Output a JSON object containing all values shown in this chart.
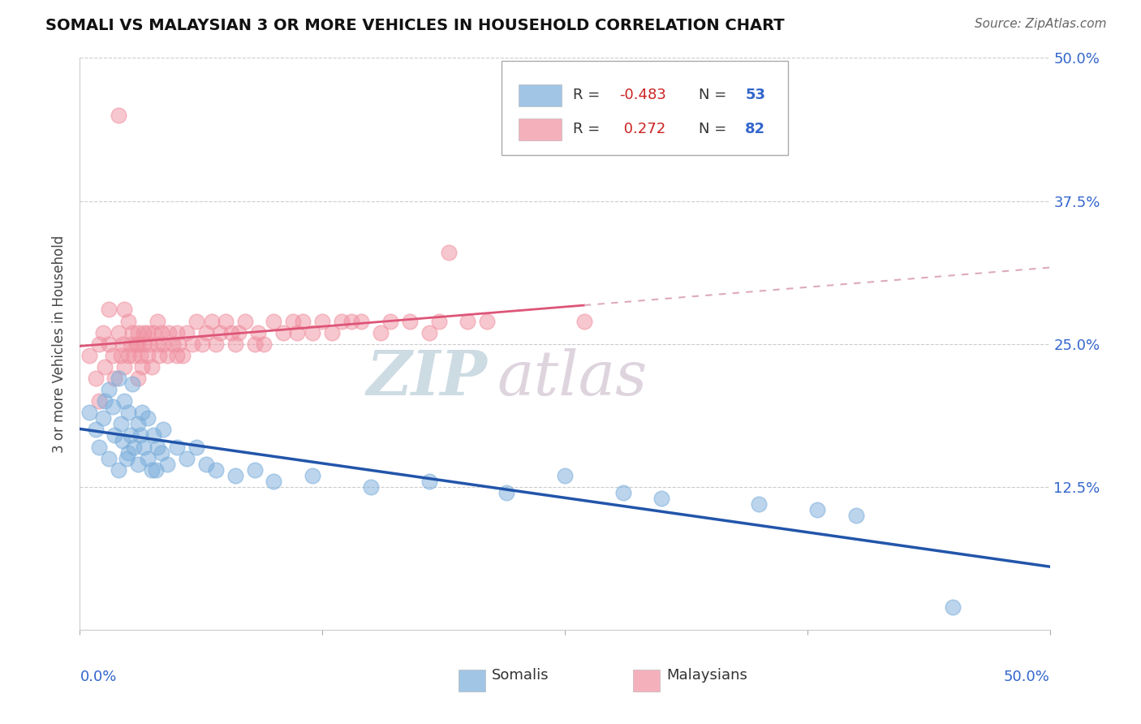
{
  "title": "SOMALI VS MALAYSIAN 3 OR MORE VEHICLES IN HOUSEHOLD CORRELATION CHART",
  "source": "Source: ZipAtlas.com",
  "ylabel": "3 or more Vehicles in Household",
  "yticks": [
    0.0,
    12.5,
    25.0,
    37.5,
    50.0
  ],
  "ytick_labels": [
    "",
    "12.5%",
    "25.0%",
    "37.5%",
    "50.0%"
  ],
  "xlim": [
    0.0,
    50.0
  ],
  "ylim": [
    0.0,
    50.0
  ],
  "somali_color": "#7aaddb",
  "malaysian_color": "#f090a0",
  "somali_R": -0.483,
  "somali_N": 53,
  "malaysian_R": 0.272,
  "malaysian_N": 82,
  "somali_line_color": "#2255aa",
  "malaysian_line_color": "#dd5577",
  "malaysian_dash_color": "#ddaabb",
  "watermark_ZIP": "ZIP",
  "watermark_atlas": "atlas",
  "watermark_color_ZIP": "#c8d8e8",
  "watermark_color_atlas": "#d0c8d0",
  "legend_R_color": "#cc2222",
  "legend_N_color": "#3366cc",
  "somali_points_x": [
    0.5,
    0.8,
    1.0,
    1.2,
    1.3,
    1.5,
    1.5,
    1.7,
    1.8,
    2.0,
    2.0,
    2.1,
    2.2,
    2.3,
    2.5,
    2.5,
    2.6,
    2.7,
    2.8,
    3.0,
    3.0,
    3.1,
    3.2,
    3.3,
    3.5,
    3.5,
    3.7,
    3.8,
    4.0,
    4.2,
    4.3,
    4.5,
    5.0,
    5.5,
    6.0,
    6.5,
    7.0,
    8.0,
    9.0,
    10.0,
    12.0,
    15.0,
    18.0,
    22.0,
    25.0,
    28.0,
    30.0,
    35.0,
    38.0,
    40.0,
    45.0,
    2.4,
    3.9
  ],
  "somali_points_y": [
    19.0,
    17.5,
    16.0,
    18.5,
    20.0,
    15.0,
    21.0,
    19.5,
    17.0,
    22.0,
    14.0,
    18.0,
    16.5,
    20.0,
    15.5,
    19.0,
    17.0,
    21.5,
    16.0,
    18.0,
    14.5,
    17.0,
    19.0,
    16.0,
    15.0,
    18.5,
    14.0,
    17.0,
    16.0,
    15.5,
    17.5,
    14.5,
    16.0,
    15.0,
    16.0,
    14.5,
    14.0,
    13.5,
    14.0,
    13.0,
    13.5,
    12.5,
    13.0,
    12.0,
    13.5,
    12.0,
    11.5,
    11.0,
    10.5,
    10.0,
    2.0,
    15.0,
    14.0
  ],
  "malaysian_points_x": [
    0.5,
    0.8,
    1.0,
    1.0,
    1.2,
    1.3,
    1.5,
    1.5,
    1.7,
    1.8,
    2.0,
    2.0,
    2.1,
    2.2,
    2.3,
    2.3,
    2.5,
    2.5,
    2.6,
    2.7,
    2.8,
    2.9,
    3.0,
    3.0,
    3.0,
    3.1,
    3.2,
    3.3,
    3.3,
    3.5,
    3.5,
    3.6,
    3.7,
    3.8,
    4.0,
    4.0,
    4.1,
    4.2,
    4.3,
    4.5,
    4.6,
    4.8,
    5.0,
    5.0,
    5.1,
    5.3,
    5.5,
    5.8,
    6.0,
    6.3,
    6.5,
    6.8,
    7.0,
    7.2,
    7.5,
    7.8,
    8.0,
    8.2,
    8.5,
    9.0,
    9.2,
    9.5,
    10.0,
    10.5,
    11.0,
    11.2,
    11.5,
    12.0,
    12.5,
    13.0,
    13.5,
    14.0,
    14.5,
    15.5,
    16.0,
    17.0,
    18.0,
    18.5,
    19.0,
    20.0,
    21.0,
    26.0
  ],
  "malaysian_points_y": [
    24.0,
    22.0,
    25.0,
    20.0,
    26.0,
    23.0,
    25.0,
    28.0,
    24.0,
    22.0,
    45.0,
    26.0,
    24.0,
    25.0,
    23.0,
    28.0,
    24.0,
    27.0,
    25.0,
    26.0,
    24.0,
    25.0,
    26.0,
    22.0,
    25.0,
    24.0,
    23.0,
    26.0,
    25.0,
    24.0,
    26.0,
    25.0,
    23.0,
    26.0,
    25.0,
    27.0,
    24.0,
    26.0,
    25.0,
    24.0,
    26.0,
    25.0,
    24.0,
    26.0,
    25.0,
    24.0,
    26.0,
    25.0,
    27.0,
    25.0,
    26.0,
    27.0,
    25.0,
    26.0,
    27.0,
    26.0,
    25.0,
    26.0,
    27.0,
    25.0,
    26.0,
    25.0,
    27.0,
    26.0,
    27.0,
    26.0,
    27.0,
    26.0,
    27.0,
    26.0,
    27.0,
    27.0,
    27.0,
    26.0,
    27.0,
    27.0,
    26.0,
    27.0,
    33.0,
    27.0,
    27.0,
    27.0
  ]
}
